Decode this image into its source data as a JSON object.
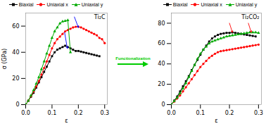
{
  "chart_data": [
    {
      "type": "line",
      "title": "Ti₂C",
      "xlabel": "ε",
      "ylabel": "σ (GPa)",
      "xlim": [
        0.0,
        0.31
      ],
      "xticks": [
        {
          "value": 0.0,
          "label": "0.0"
        },
        0.1,
        0.2,
        0.3
      ],
      "ylim": [
        0,
        70
      ],
      "yticks": [
        0,
        20,
        40,
        60
      ],
      "series": [
        {
          "name": "Biaxial",
          "color": "#000000",
          "marker": "square",
          "x": [
            0.0,
            0.01,
            0.02,
            0.03,
            0.04,
            0.05,
            0.06,
            0.07,
            0.08,
            0.09,
            0.1,
            0.11,
            0.12,
            0.13,
            0.14,
            0.15,
            0.16,
            0.17,
            0.18,
            0.19,
            0.2,
            0.21,
            0.22,
            0.23,
            0.24,
            0.25,
            0.26,
            0.27,
            0.28
          ],
          "values": [
            0,
            3,
            6,
            9,
            13,
            17,
            21,
            25,
            29,
            33,
            37,
            40,
            42,
            43,
            44,
            45,
            44,
            43,
            42,
            41,
            41,
            40.5,
            40,
            39.5,
            39,
            38.5,
            38,
            37.5,
            37
          ]
        },
        {
          "name": "Uniaxial x",
          "color": "#ff0000",
          "marker": "circle",
          "x": [
            0.0,
            0.01,
            0.02,
            0.03,
            0.04,
            0.05,
            0.06,
            0.07,
            0.08,
            0.09,
            0.1,
            0.11,
            0.12,
            0.13,
            0.14,
            0.15,
            0.16,
            0.17,
            0.18,
            0.19,
            0.2,
            0.21,
            0.22,
            0.23,
            0.24,
            0.25,
            0.26,
            0.27,
            0.28,
            0.29,
            0.3
          ],
          "values": [
            0,
            3,
            6.5,
            10,
            14,
            18,
            23,
            28,
            33,
            38,
            43,
            47,
            50,
            52,
            54,
            56,
            57,
            58,
            59,
            59.5,
            59.5,
            59,
            58,
            57,
            56,
            55,
            54,
            53,
            51,
            50,
            47
          ]
        },
        {
          "name": "Uniaxial y",
          "color": "#00aa00",
          "marker": "triangle",
          "x": [
            0.0,
            0.01,
            0.02,
            0.03,
            0.04,
            0.05,
            0.06,
            0.07,
            0.08,
            0.09,
            0.1,
            0.11,
            0.12,
            0.13,
            0.14,
            0.15,
            0.16,
            0.17
          ],
          "values": [
            0,
            3,
            7,
            11,
            16,
            21,
            27,
            33,
            39,
            45,
            51,
            56,
            59,
            62,
            63.5,
            64,
            64.5,
            40
          ]
        }
      ],
      "arrows": [
        {
          "x1": 0.148,
          "y1": 55,
          "x2": 0.158,
          "y2": 43,
          "color": "#0000ff"
        },
        {
          "x1": 0.185,
          "y1": 67,
          "x2": 0.2,
          "y2": 59,
          "color": "#0000ff"
        }
      ],
      "annotations": [
        {
          "text": "Functionalization",
          "color": "#00cc00"
        }
      ]
    },
    {
      "type": "line",
      "title": "Ti₂CO₂",
      "xlabel": "ε",
      "xlim": [
        0.0,
        0.31
      ],
      "xticks": [
        {
          "value": 0.0,
          "label": "0.0"
        },
        0.1,
        0.2,
        0.3
      ],
      "ylim": [
        0,
        90
      ],
      "yticks": [
        0,
        20,
        40,
        60,
        80
      ],
      "series": [
        {
          "name": "Biaxial",
          "color": "#000000",
          "marker": "square",
          "x": [
            0.0,
            0.01,
            0.02,
            0.03,
            0.04,
            0.05,
            0.06,
            0.07,
            0.08,
            0.09,
            0.1,
            0.11,
            0.12,
            0.13,
            0.14,
            0.15,
            0.16,
            0.17,
            0.18,
            0.19,
            0.2,
            0.21,
            0.22,
            0.23,
            0.24,
            0.25,
            0.26,
            0.27,
            0.28,
            0.29
          ],
          "values": [
            0,
            4,
            8,
            13,
            18,
            23,
            28,
            34,
            39,
            44,
            49,
            54,
            58,
            62,
            65,
            67,
            68.5,
            69.5,
            70,
            70.5,
            70.5,
            71,
            70.5,
            70,
            69.5,
            69,
            68.5,
            68,
            67.5,
            67
          ]
        },
        {
          "name": "Uniaxial x",
          "color": "#ff0000",
          "marker": "circle",
          "x": [
            0.0,
            0.01,
            0.02,
            0.03,
            0.04,
            0.05,
            0.06,
            0.07,
            0.08,
            0.09,
            0.1,
            0.11,
            0.12,
            0.13,
            0.14,
            0.15,
            0.16,
            0.17,
            0.18,
            0.19,
            0.2,
            0.21,
            0.22,
            0.23,
            0.24,
            0.25,
            0.26,
            0.27,
            0.28,
            0.29,
            0.3
          ],
          "values": [
            0,
            3,
            6,
            9,
            13,
            17,
            21,
            25,
            29,
            33,
            37,
            40,
            43,
            46,
            48,
            50,
            51.5,
            52.5,
            53,
            53.5,
            54,
            54.5,
            55,
            55.5,
            56,
            56.5,
            57,
            57.5,
            58,
            58.5,
            59
          ]
        },
        {
          "name": "Uniaxial y",
          "color": "#00aa00",
          "marker": "triangle",
          "x": [
            0.0,
            0.01,
            0.02,
            0.03,
            0.04,
            0.05,
            0.06,
            0.07,
            0.08,
            0.09,
            0.1,
            0.11,
            0.12,
            0.13,
            0.14,
            0.15,
            0.16,
            0.17,
            0.18,
            0.19,
            0.2,
            0.21,
            0.22,
            0.23,
            0.24,
            0.25,
            0.26,
            0.27,
            0.28,
            0.29,
            0.3
          ],
          "values": [
            0,
            3.5,
            7,
            11,
            16,
            21,
            27,
            33,
            39,
            45,
            50,
            54,
            57,
            60,
            62,
            63,
            64,
            65,
            66,
            67,
            67.5,
            68,
            68.5,
            69,
            69.5,
            70,
            70.5,
            71,
            71,
            71,
            70.5
          ]
        }
      ],
      "arrows": [
        {
          "x1": 0.2,
          "y1": 80,
          "x2": 0.21,
          "y2": 71,
          "color": "#ff0000"
        },
        {
          "x1": 0.265,
          "y1": 80,
          "x2": 0.275,
          "y2": 71,
          "color": "#ff0000"
        }
      ]
    }
  ]
}
